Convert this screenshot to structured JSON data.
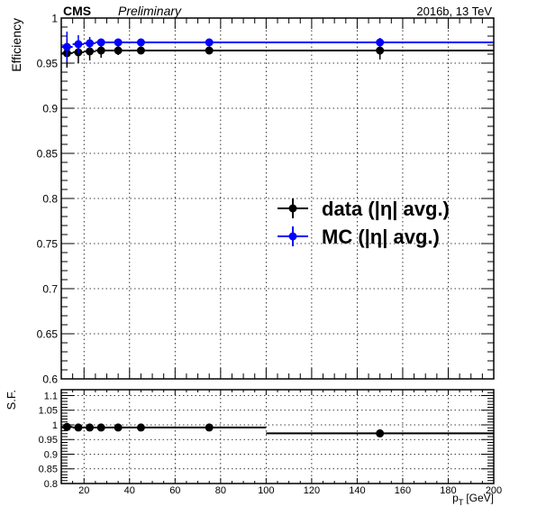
{
  "header": {
    "experiment": "CMS",
    "status": "Preliminary",
    "run_info": "2016b, 13 TeV"
  },
  "legend": {
    "items": [
      {
        "label": "data (|η| avg.)",
        "color": "#000000"
      },
      {
        "label": "MC (|η| avg.)",
        "color": "#0000ff"
      }
    ]
  },
  "chart_data": [
    {
      "type": "scatter",
      "panel": "efficiency",
      "xlabel": "",
      "ylabel": "Efficiency",
      "xlim": [
        10,
        200
      ],
      "ylim": [
        0.6,
        1.0
      ],
      "yticks": [
        0.6,
        0.65,
        0.7,
        0.75,
        0.8,
        0.85,
        0.9,
        0.95,
        1
      ],
      "ytick_labels": [
        "0.6",
        "0.65",
        "0.7",
        "0.75",
        "0.8",
        "0.85",
        "0.9",
        "0.95",
        "1"
      ],
      "grid": true,
      "legend_position": "center-right",
      "series": [
        {
          "name": "data (|η| avg.)",
          "color": "#000000",
          "points": [
            {
              "x": 12.5,
              "xlow": 10,
              "xhigh": 15,
              "y": 0.961,
              "yerr": 0.016
            },
            {
              "x": 17.5,
              "xlow": 15,
              "xhigh": 20,
              "y": 0.962,
              "yerr": 0.012
            },
            {
              "x": 22.5,
              "xlow": 20,
              "xhigh": 25,
              "y": 0.963,
              "yerr": 0.01
            },
            {
              "x": 27.5,
              "xlow": 25,
              "xhigh": 30,
              "y": 0.964,
              "yerr": 0.008
            },
            {
              "x": 35,
              "xlow": 30,
              "xhigh": 40,
              "y": 0.964,
              "yerr": 0.005
            },
            {
              "x": 45,
              "xlow": 40,
              "xhigh": 50,
              "y": 0.964,
              "yerr": 0.004
            },
            {
              "x": 75,
              "xlow": 50,
              "xhigh": 100,
              "y": 0.964,
              "yerr": 0.004
            },
            {
              "x": 150,
              "xlow": 100,
              "xhigh": 200,
              "y": 0.964,
              "yerr": 0.01
            }
          ]
        },
        {
          "name": "MC (|η| avg.)",
          "color": "#0000ff",
          "points": [
            {
              "x": 12.5,
              "xlow": 10,
              "xhigh": 15,
              "y": 0.968,
              "yerr": 0.017
            },
            {
              "x": 17.5,
              "xlow": 15,
              "xhigh": 20,
              "y": 0.971,
              "yerr": 0.01
            },
            {
              "x": 22.5,
              "xlow": 20,
              "xhigh": 25,
              "y": 0.972,
              "yerr": 0.007
            },
            {
              "x": 27.5,
              "xlow": 25,
              "xhigh": 30,
              "y": 0.973,
              "yerr": 0.004
            },
            {
              "x": 35,
              "xlow": 30,
              "xhigh": 40,
              "y": 0.973,
              "yerr": 0.003
            },
            {
              "x": 45,
              "xlow": 40,
              "xhigh": 50,
              "y": 0.973,
              "yerr": 0.003
            },
            {
              "x": 75,
              "xlow": 50,
              "xhigh": 100,
              "y": 0.973,
              "yerr": 0.003
            },
            {
              "x": 150,
              "xlow": 100,
              "xhigh": 200,
              "y": 0.973,
              "yerr": 0.005
            }
          ]
        }
      ]
    },
    {
      "type": "scatter",
      "panel": "scale-factor",
      "xlabel": "p_T [GeV]",
      "xlabel_main": "p",
      "xlabel_sub": "T",
      "xlabel_unit": "[GeV]",
      "ylabel": "S.F.",
      "xlim": [
        10,
        200
      ],
      "ylim": [
        0.8,
        1.12
      ],
      "xticks": [
        20,
        40,
        60,
        80,
        100,
        120,
        140,
        160,
        180,
        200
      ],
      "xtick_labels": [
        "20",
        "40",
        "60",
        "80",
        "100",
        "120",
        "140",
        "160",
        "180",
        "200"
      ],
      "yticks": [
        0.8,
        0.85,
        0.9,
        0.95,
        1,
        1.05,
        1.1
      ],
      "ytick_labels": [
        "0.8",
        "0.85",
        "0.9",
        "0.95",
        "1",
        "1.05",
        "1.1"
      ],
      "grid": true,
      "series": [
        {
          "name": "",
          "color": "#000000",
          "points": [
            {
              "x": 12.5,
              "xlow": 10,
              "xhigh": 15,
              "y": 0.993,
              "yerr": 0.006
            },
            {
              "x": 17.5,
              "xlow": 15,
              "xhigh": 20,
              "y": 0.991,
              "yerr": 0.004
            },
            {
              "x": 22.5,
              "xlow": 20,
              "xhigh": 25,
              "y": 0.991,
              "yerr": 0.003
            },
            {
              "x": 27.5,
              "xlow": 25,
              "xhigh": 30,
              "y": 0.991,
              "yerr": 0.003
            },
            {
              "x": 35,
              "xlow": 30,
              "xhigh": 40,
              "y": 0.991,
              "yerr": 0.002
            },
            {
              "x": 45,
              "xlow": 40,
              "xhigh": 50,
              "y": 0.991,
              "yerr": 0.002
            },
            {
              "x": 75,
              "xlow": 50,
              "xhigh": 100,
              "y": 0.991,
              "yerr": 0.002
            },
            {
              "x": 150,
              "xlow": 100,
              "xhigh": 200,
              "y": 0.971,
              "yerr": 0.008
            }
          ]
        }
      ]
    }
  ]
}
